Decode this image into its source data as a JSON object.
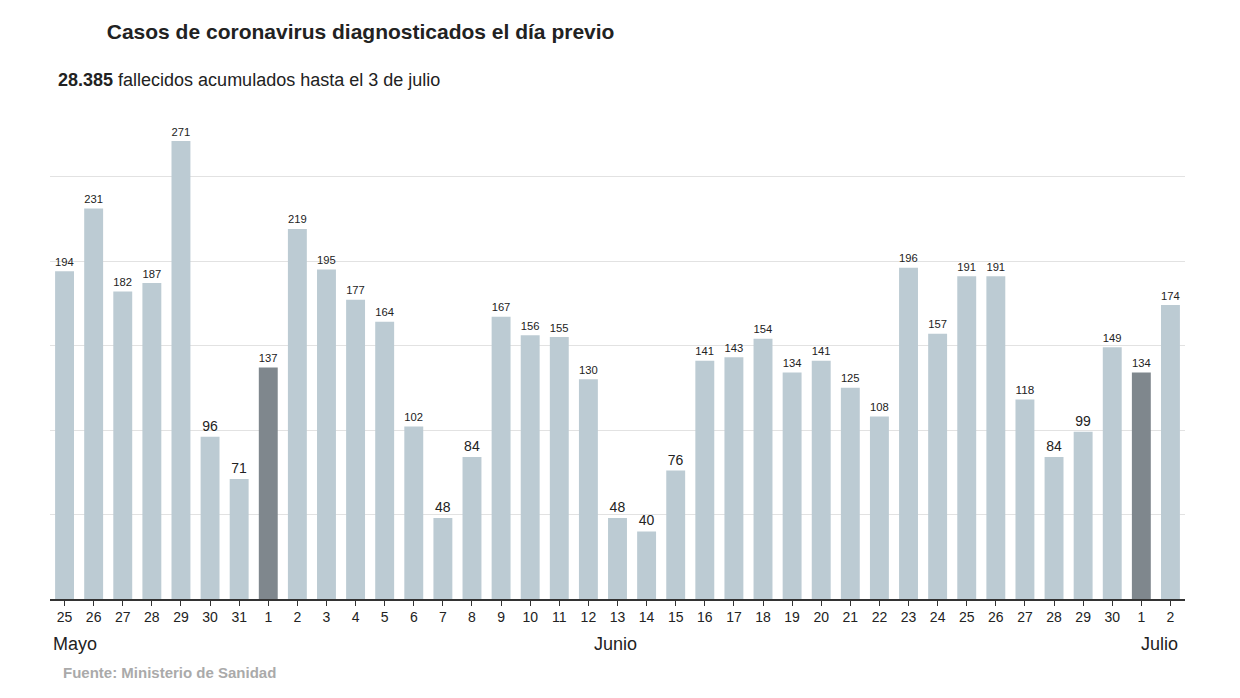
{
  "chart_data": {
    "type": "bar",
    "title": "Casos de coronavirus diagnosticados el día previo",
    "subtitle": "28.385 fallecidos acumulados hasta el 3 de julio",
    "source": "Fuente: Ministerio de Sanidad",
    "categories": [
      "25",
      "26",
      "27",
      "28",
      "29",
      "30",
      "31",
      "1",
      "2",
      "3",
      "4",
      "5",
      "6",
      "7",
      "8",
      "9",
      "10",
      "11",
      "12",
      "13",
      "14",
      "15",
      "16",
      "17",
      "18",
      "19",
      "20",
      "21",
      "22",
      "23",
      "24",
      "25",
      "26",
      "27",
      "28",
      "29",
      "30",
      "1",
      "2"
    ],
    "values": [
      194,
      231,
      182,
      187,
      271,
      96,
      71,
      137,
      219,
      195,
      177,
      164,
      102,
      48,
      84,
      167,
      156,
      155,
      130,
      48,
      40,
      76,
      141,
      143,
      154,
      134,
      141,
      125,
      108,
      196,
      157,
      191,
      191,
      118,
      84,
      99,
      149,
      134,
      174
    ],
    "colors": [
      "#bccbd3",
      "#bccbd3",
      "#bccbd3",
      "#bccbd3",
      "#bccbd3",
      "#bccbd3",
      "#bccbd3",
      "#7f878d",
      "#bccbd3",
      "#bccbd3",
      "#bccbd3",
      "#bccbd3",
      "#bccbd3",
      "#bccbd3",
      "#bccbd3",
      "#bccbd3",
      "#bccbd3",
      "#bccbd3",
      "#bccbd3",
      "#bccbd3",
      "#bccbd3",
      "#bccbd3",
      "#bccbd3",
      "#bccbd3",
      "#bccbd3",
      "#bccbd3",
      "#bccbd3",
      "#bccbd3",
      "#bccbd3",
      "#bccbd3",
      "#bccbd3",
      "#bccbd3",
      "#bccbd3",
      "#bccbd3",
      "#bccbd3",
      "#bccbd3",
      "#bccbd3",
      "#7f878d",
      "#bccbd3"
    ],
    "annotations": [
      {
        "text": "Mayo",
        "index": 0
      },
      {
        "text": "Junio",
        "index": 19
      },
      {
        "text": "Julio",
        "index": 37
      }
    ],
    "ylim": [
      0,
      300
    ],
    "yticks": [
      0,
      50,
      100,
      150,
      200,
      250,
      300
    ],
    "grid": true,
    "data_labels": true,
    "tick_labels": "x"
  }
}
